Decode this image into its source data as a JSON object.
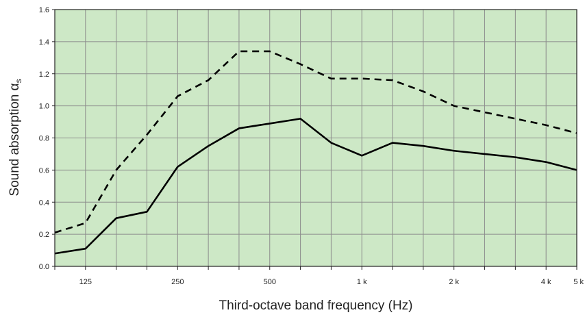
{
  "chart_data": {
    "type": "line",
    "xlabel": "Third-octave band frequency (Hz)",
    "ylabel": "Sound absorption αs",
    "ylabel_main": "Sound absorption α",
    "ylabel_sub": "s",
    "x_scale": "log",
    "x_bands": [
      100,
      125,
      160,
      200,
      250,
      315,
      400,
      500,
      630,
      800,
      1000,
      1250,
      1600,
      2000,
      2500,
      3150,
      4000,
      5000
    ],
    "x_tick_labels": [
      {
        "band": 125,
        "label": "125"
      },
      {
        "band": 250,
        "label": "250"
      },
      {
        "band": 500,
        "label": "500"
      },
      {
        "band": 1000,
        "label": "1 k"
      },
      {
        "band": 2000,
        "label": "2 k"
      },
      {
        "band": 4000,
        "label": "4 k"
      },
      {
        "band": 5000,
        "label": "5 k"
      }
    ],
    "ylim": [
      0,
      1.6
    ],
    "y_ticks": [
      "0.0",
      "0.2",
      "0.4",
      "0.6",
      "0.8",
      "1.0",
      "1.2",
      "1.4",
      "1.6"
    ],
    "grid": true,
    "plot_background": "#cde8c6",
    "series": [
      {
        "style": "dashed",
        "color": "#000000",
        "values": [
          0.21,
          0.27,
          0.6,
          0.82,
          1.06,
          1.16,
          1.34,
          1.34,
          1.26,
          1.17,
          1.17,
          1.16,
          1.09,
          1.0,
          0.96,
          0.92,
          0.88,
          0.83
        ]
      },
      {
        "style": "solid",
        "color": "#000000",
        "values": [
          0.08,
          0.11,
          0.3,
          0.34,
          0.62,
          0.75,
          0.86,
          0.89,
          0.92,
          0.77,
          0.69,
          0.77,
          0.75,
          0.72,
          0.7,
          0.68,
          0.65,
          0.6
        ]
      }
    ]
  }
}
